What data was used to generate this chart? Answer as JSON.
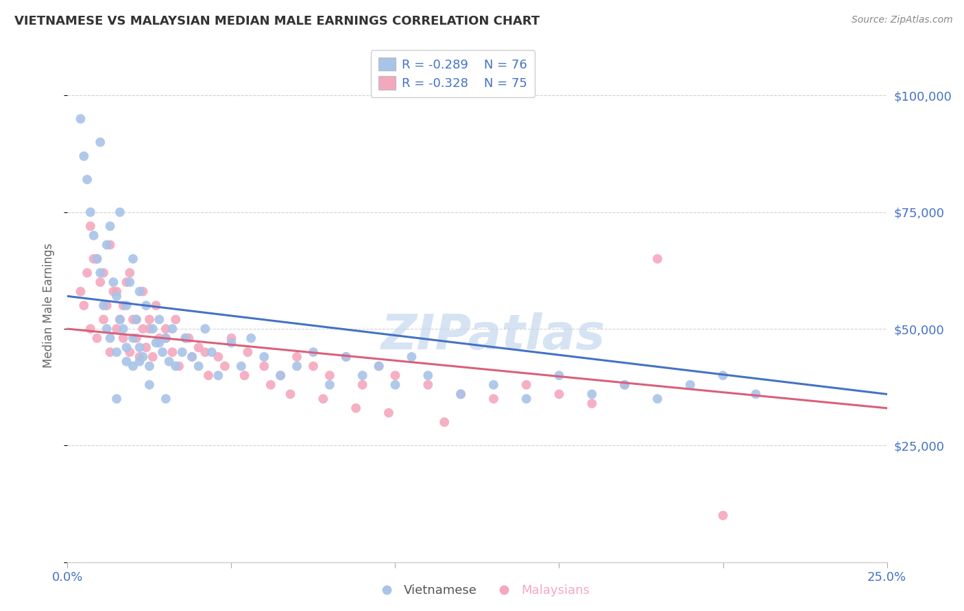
{
  "title": "VIETNAMESE VS MALAYSIAN MEDIAN MALE EARNINGS CORRELATION CHART",
  "source": "Source: ZipAtlas.com",
  "ylabel": "Median Male Earnings",
  "xlim": [
    0.0,
    0.25
  ],
  "ylim": [
    0,
    110000
  ],
  "xticks": [
    0.0,
    0.05,
    0.1,
    0.15,
    0.2,
    0.25
  ],
  "xticklabels": [
    "0.0%",
    "",
    "",
    "",
    "",
    "25.0%"
  ],
  "yticks": [
    0,
    25000,
    50000,
    75000,
    100000
  ],
  "yticklabels": [
    "",
    "$25,000",
    "$50,000",
    "$75,000",
    "$100,000"
  ],
  "viet_color": "#a8c4e8",
  "malay_color": "#f4a8be",
  "viet_line_color": "#4472c4",
  "malay_line_color": "#d9607a",
  "R_viet": -0.289,
  "N_viet": 76,
  "R_malay": -0.328,
  "N_malay": 75,
  "legend_text_color": "#4472c4",
  "watermark_color": "#c5d8ee",
  "background_color": "#ffffff",
  "grid_color": "#d0d0d0",
  "tick_color": "#4472c4",
  "title_color": "#333333",
  "viet_x": [
    0.004,
    0.005,
    0.006,
    0.007,
    0.008,
    0.009,
    0.01,
    0.01,
    0.011,
    0.012,
    0.013,
    0.013,
    0.014,
    0.015,
    0.015,
    0.016,
    0.016,
    0.017,
    0.018,
    0.018,
    0.019,
    0.02,
    0.02,
    0.021,
    0.022,
    0.022,
    0.023,
    0.024,
    0.025,
    0.026,
    0.027,
    0.028,
    0.029,
    0.03,
    0.031,
    0.032,
    0.033,
    0.035,
    0.036,
    0.038,
    0.04,
    0.042,
    0.044,
    0.046,
    0.05,
    0.053,
    0.056,
    0.06,
    0.065,
    0.07,
    0.075,
    0.08,
    0.085,
    0.09,
    0.095,
    0.1,
    0.105,
    0.11,
    0.12,
    0.13,
    0.14,
    0.15,
    0.16,
    0.17,
    0.18,
    0.19,
    0.2,
    0.21,
    0.015,
    0.02,
    0.025,
    0.03,
    0.012,
    0.018,
    0.022,
    0.028
  ],
  "viet_y": [
    95000,
    87000,
    82000,
    75000,
    70000,
    65000,
    62000,
    90000,
    55000,
    68000,
    72000,
    48000,
    60000,
    57000,
    45000,
    52000,
    75000,
    50000,
    55000,
    43000,
    60000,
    48000,
    65000,
    52000,
    46000,
    58000,
    44000,
    55000,
    42000,
    50000,
    47000,
    52000,
    45000,
    48000,
    43000,
    50000,
    42000,
    45000,
    48000,
    44000,
    42000,
    50000,
    45000,
    40000,
    47000,
    42000,
    48000,
    44000,
    40000,
    42000,
    45000,
    38000,
    44000,
    40000,
    42000,
    38000,
    44000,
    40000,
    36000,
    38000,
    35000,
    40000,
    36000,
    38000,
    35000,
    38000,
    40000,
    36000,
    35000,
    42000,
    38000,
    35000,
    50000,
    46000,
    43000,
    47000
  ],
  "malay_x": [
    0.004,
    0.005,
    0.006,
    0.007,
    0.008,
    0.009,
    0.01,
    0.011,
    0.012,
    0.013,
    0.014,
    0.015,
    0.016,
    0.017,
    0.018,
    0.019,
    0.02,
    0.021,
    0.022,
    0.023,
    0.024,
    0.025,
    0.026,
    0.028,
    0.03,
    0.032,
    0.034,
    0.036,
    0.038,
    0.04,
    0.043,
    0.046,
    0.05,
    0.055,
    0.06,
    0.065,
    0.07,
    0.075,
    0.08,
    0.085,
    0.09,
    0.095,
    0.1,
    0.11,
    0.12,
    0.13,
    0.14,
    0.15,
    0.16,
    0.17,
    0.007,
    0.009,
    0.011,
    0.013,
    0.015,
    0.017,
    0.019,
    0.021,
    0.023,
    0.025,
    0.027,
    0.03,
    0.033,
    0.037,
    0.042,
    0.048,
    0.054,
    0.062,
    0.068,
    0.078,
    0.088,
    0.098,
    0.115,
    0.18,
    0.2
  ],
  "malay_y": [
    58000,
    55000,
    62000,
    50000,
    65000,
    48000,
    60000,
    52000,
    55000,
    45000,
    58000,
    50000,
    52000,
    48000,
    60000,
    45000,
    52000,
    48000,
    44000,
    50000,
    46000,
    52000,
    44000,
    48000,
    50000,
    45000,
    42000,
    48000,
    44000,
    46000,
    40000,
    44000,
    48000,
    45000,
    42000,
    40000,
    44000,
    42000,
    40000,
    44000,
    38000,
    42000,
    40000,
    38000,
    36000,
    35000,
    38000,
    36000,
    34000,
    38000,
    72000,
    65000,
    62000,
    68000,
    58000,
    55000,
    62000,
    52000,
    58000,
    50000,
    55000,
    48000,
    52000,
    48000,
    45000,
    42000,
    40000,
    38000,
    36000,
    35000,
    33000,
    32000,
    30000,
    65000,
    10000
  ]
}
